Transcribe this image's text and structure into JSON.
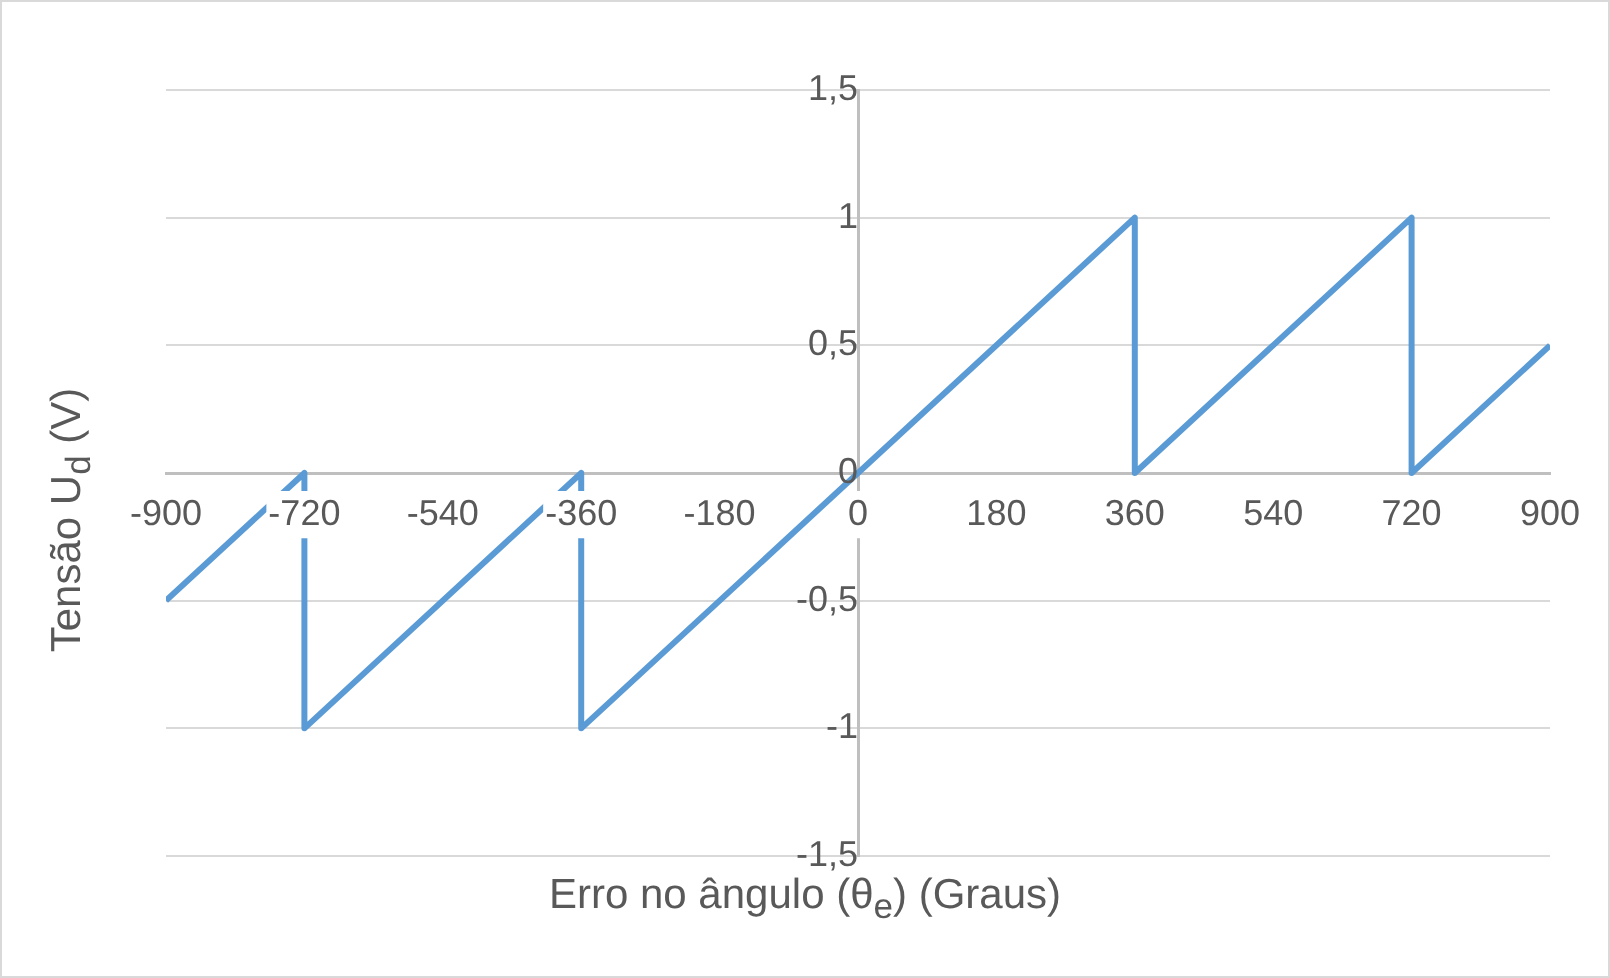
{
  "chart_data": {
    "type": "line",
    "xlabel": "Erro no ângulo (θ$_{e}$) (Graus)",
    "ylabel": "Tensão U$_{d}$ (V)",
    "x": [
      -900,
      -720,
      -720,
      -360,
      -360,
      360,
      360,
      720,
      720,
      900
    ],
    "values": [
      -0.5,
      0,
      -1,
      0,
      -1,
      1,
      0,
      1,
      0,
      0.5
    ],
    "color": "#5b9bd5",
    "marker": "none",
    "xlim": [
      -900,
      900
    ],
    "xticks": [
      -900,
      -720,
      -540,
      -360,
      -180,
      0,
      180,
      360,
      540,
      720,
      900
    ],
    "ylim": [
      -1.5,
      1.5
    ],
    "yticks": [
      {
        "value": -1.5,
        "label": "-1,5"
      },
      -1,
      {
        "value": -0.5,
        "label": "-0,5"
      },
      0,
      {
        "value": 0.5,
        "label": "0,5"
      },
      1,
      {
        "value": 1.5,
        "label": "1,5"
      }
    ],
    "grid": "y"
  }
}
